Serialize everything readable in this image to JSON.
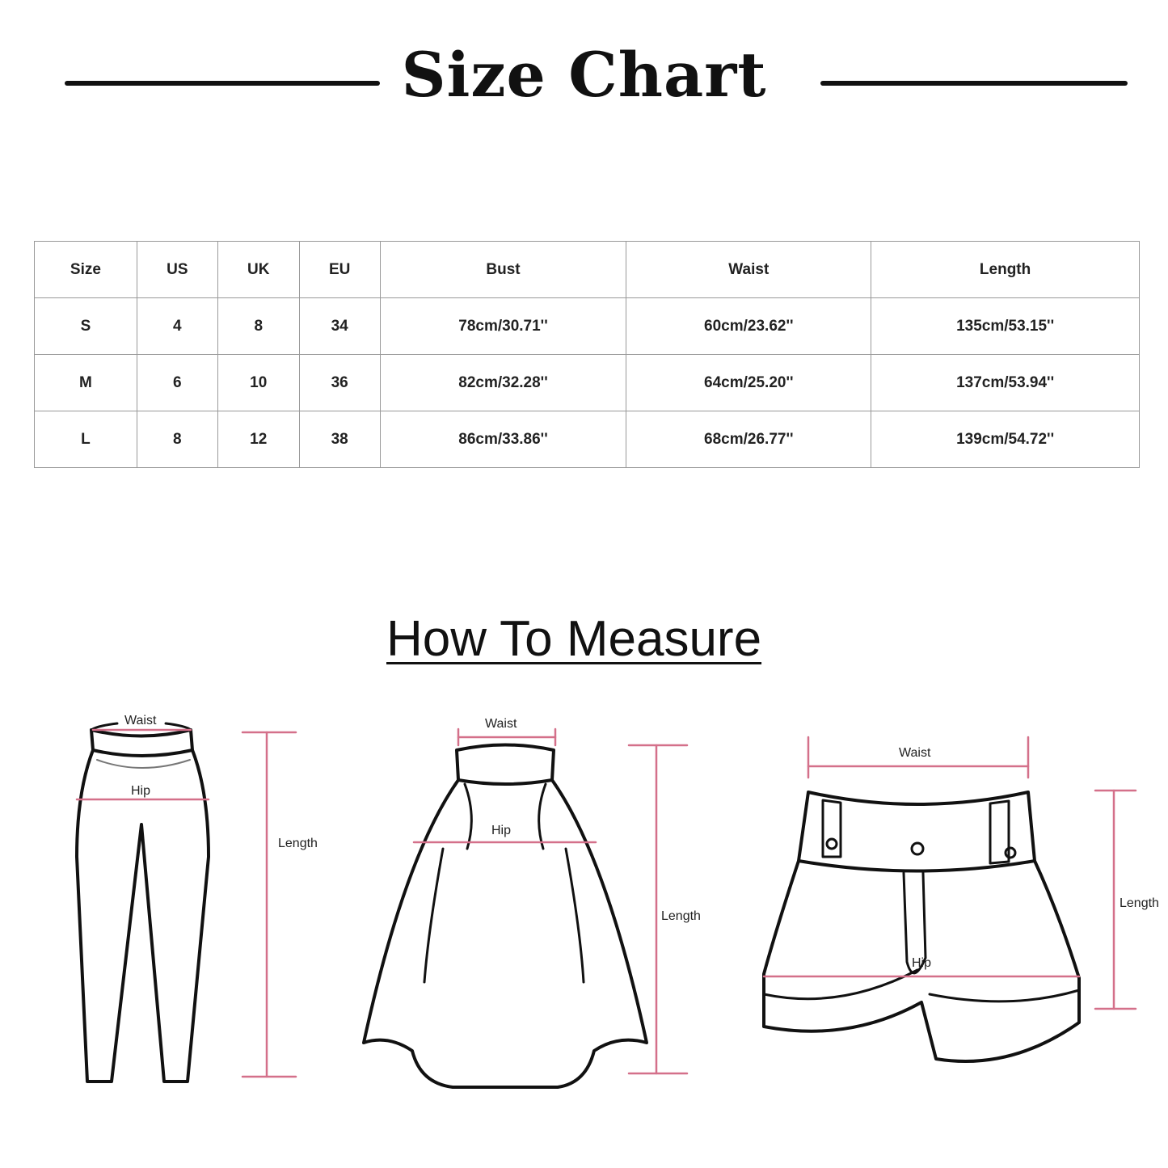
{
  "title": "Size Chart",
  "table": {
    "headers": [
      "Size",
      "US",
      "UK",
      "EU",
      "Bust",
      "Waist",
      "Length"
    ],
    "rows": [
      [
        "S",
        "4",
        "8",
        "34",
        "78cm/30.71''",
        "60cm/23.62''",
        "135cm/53.15''"
      ],
      [
        "M",
        "6",
        "10",
        "36",
        "82cm/32.28''",
        "64cm/25.20''",
        "137cm/53.94''"
      ],
      [
        "L",
        "8",
        "12",
        "38",
        "86cm/33.86''",
        "68cm/26.77''",
        "139cm/54.72''"
      ]
    ]
  },
  "how_to_measure": {
    "heading": "How To Measure",
    "pants": {
      "waist": "Waist",
      "hip": "Hip",
      "length": "Length"
    },
    "skirt": {
      "waist": "Waist",
      "hip": "Hip",
      "length": "Length"
    },
    "shorts": {
      "waist": "Waist",
      "hip": "Hip",
      "length": "Length"
    }
  },
  "colors": {
    "measure_line": "#d4708a",
    "outline": "#111111",
    "grid": "#999999"
  }
}
